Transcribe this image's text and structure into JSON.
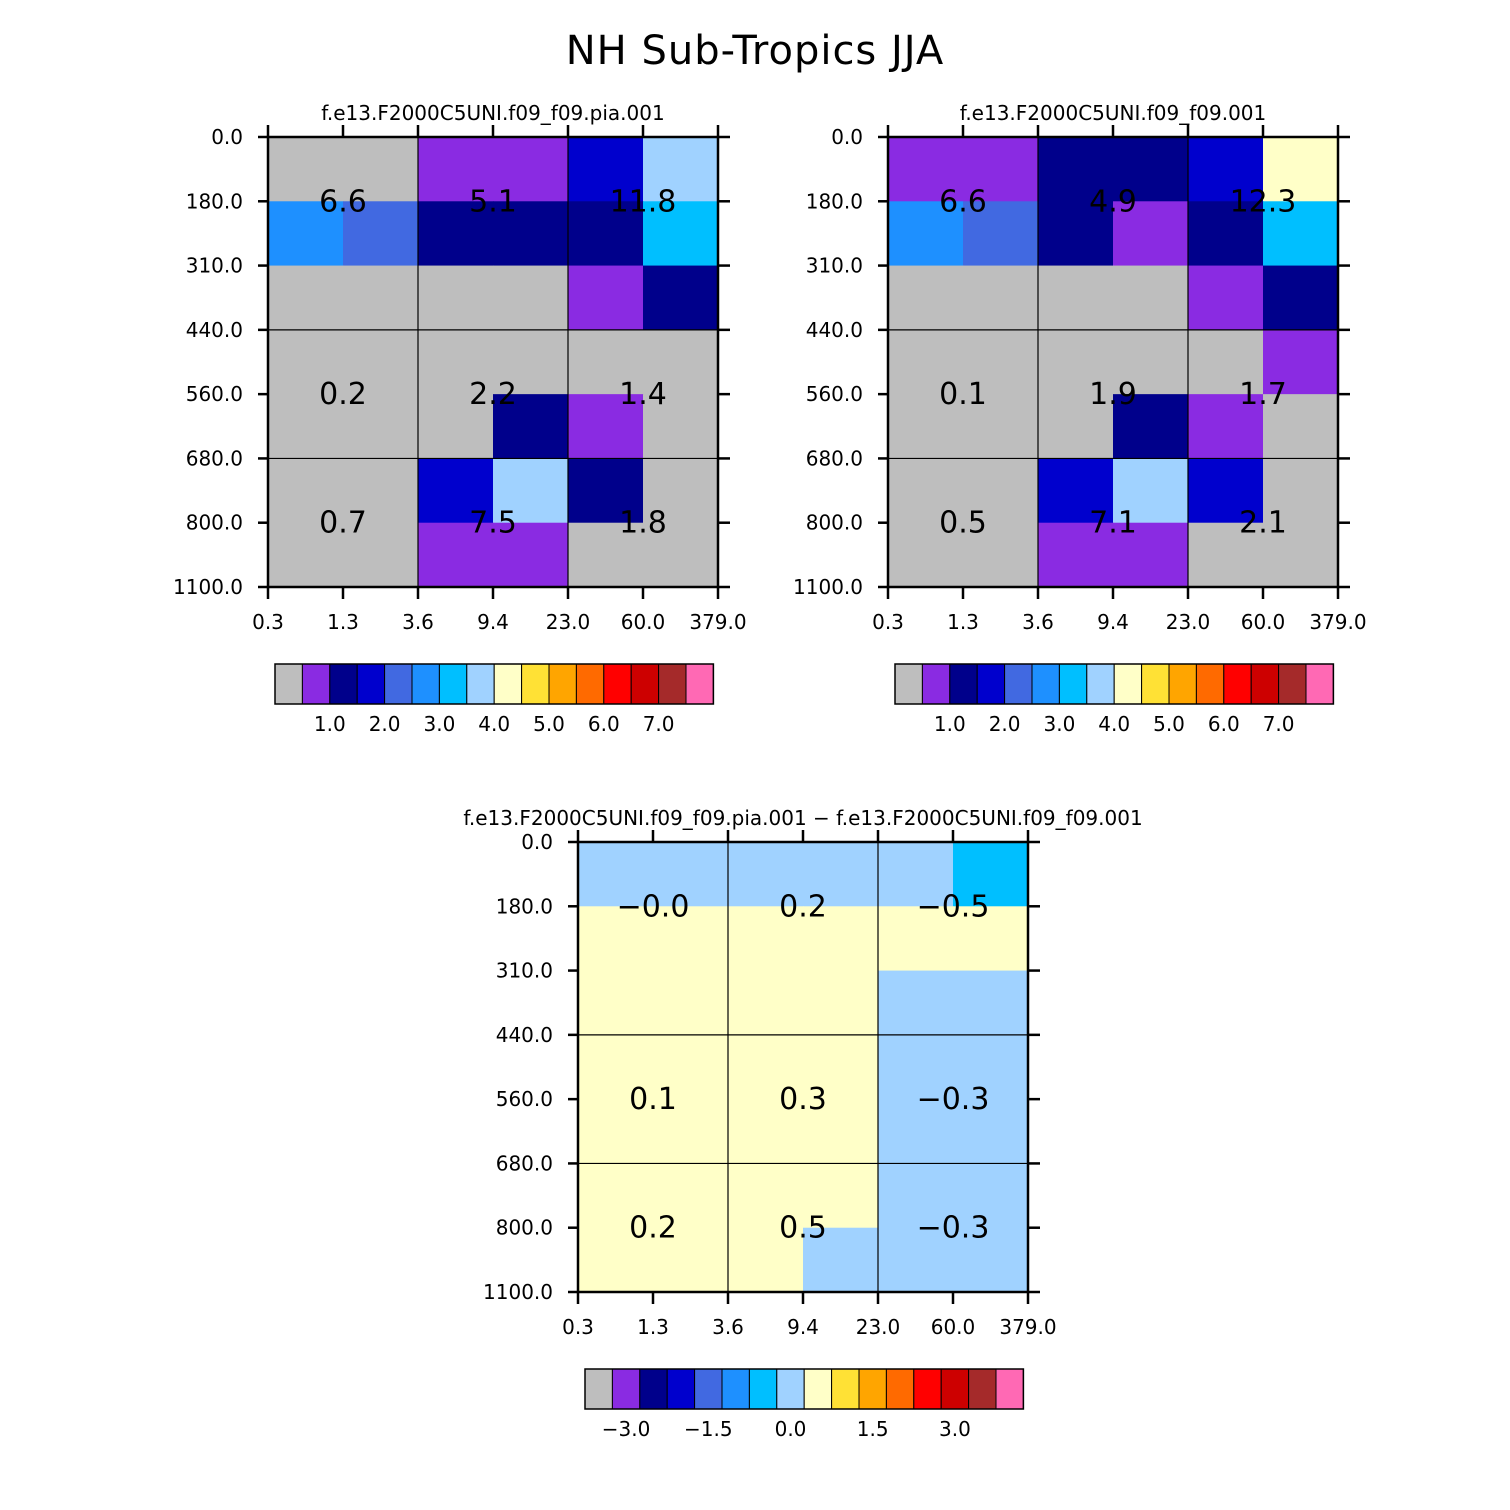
{
  "title": "NH Sub-Tropics JJA",
  "chart_data": {
    "type": "heatmap",
    "x_tick_labels": [
      "0.3",
      "1.3",
      "3.6",
      "9.4",
      "23.0",
      "60.0",
      "379.0"
    ],
    "y_tick_labels": [
      "0.0",
      "180.0",
      "310.0",
      "440.0",
      "560.0",
      "680.0",
      "800.0",
      "1100.0"
    ],
    "panels": [
      {
        "title": "f.e13.F2000C5UNI.f09_f09.pia.001",
        "levels": [
          0.5,
          1.0,
          1.5,
          2.0,
          2.5,
          3.0,
          3.5,
          4.0,
          4.5,
          5.0,
          5.5,
          6.0,
          6.5,
          7.0,
          7.5
        ],
        "colorbar_labels": [
          "1.0",
          "2.0",
          "3.0",
          "4.0",
          "5.0",
          "6.0",
          "7.0"
        ],
        "cells": [
          [
            0.2,
            0.2,
            0.8,
            0.8,
            1.8,
            3.8
          ],
          [
            2.8,
            2.2,
            1.2,
            1.2,
            1.2,
            3.2
          ],
          [
            0.2,
            0.2,
            0.2,
            0.2,
            0.8,
            1.2
          ],
          [
            0.2,
            0.2,
            0.2,
            0.2,
            0.2,
            0.2
          ],
          [
            0.2,
            0.2,
            0.2,
            1.2,
            0.8,
            0.2
          ],
          [
            0.2,
            0.2,
            1.8,
            3.8,
            1.2,
            0.2
          ],
          [
            0.2,
            0.2,
            0.8,
            0.8,
            0.2,
            0.2
          ]
        ],
        "block_totals": [
          {
            "value": "6.6"
          },
          {
            "value": "5.1"
          },
          {
            "value": "11.8"
          },
          {
            "value": "0.2"
          },
          {
            "value": "2.2"
          },
          {
            "value": "1.4"
          },
          {
            "value": "0.7"
          },
          {
            "value": "7.5"
          },
          {
            "value": "1.8"
          }
        ]
      },
      {
        "title": "f.e13.F2000C5UNI.f09_f09.001",
        "levels": [
          0.5,
          1.0,
          1.5,
          2.0,
          2.5,
          3.0,
          3.5,
          4.0,
          4.5,
          5.0,
          5.5,
          6.0,
          6.5,
          7.0,
          7.5
        ],
        "colorbar_labels": [
          "1.0",
          "2.0",
          "3.0",
          "4.0",
          "5.0",
          "6.0",
          "7.0"
        ],
        "cells": [
          [
            0.8,
            0.8,
            1.2,
            1.2,
            1.8,
            4.2
          ],
          [
            2.8,
            2.2,
            1.2,
            0.8,
            1.2,
            3.2
          ],
          [
            0.2,
            0.2,
            0.2,
            0.2,
            0.8,
            1.2
          ],
          [
            0.2,
            0.2,
            0.2,
            0.2,
            0.2,
            0.8
          ],
          [
            0.2,
            0.2,
            0.2,
            1.2,
            0.8,
            0.2
          ],
          [
            0.2,
            0.2,
            1.8,
            3.8,
            1.8,
            0.2
          ],
          [
            0.2,
            0.2,
            0.8,
            0.8,
            0.2,
            0.2
          ]
        ],
        "block_totals": [
          {
            "value": "6.6"
          },
          {
            "value": "4.9"
          },
          {
            "value": "12.3"
          },
          {
            "value": "0.1"
          },
          {
            "value": "1.9"
          },
          {
            "value": "1.7"
          },
          {
            "value": "0.5"
          },
          {
            "value": "7.1"
          },
          {
            "value": "2.1"
          }
        ]
      },
      {
        "title": "f.e13.F2000C5UNI.f09_f09.pia.001 − f.e13.F2000C5UNI.f09_f09.001",
        "levels": [
          -3.5,
          -3.0,
          -2.5,
          -2.0,
          -1.5,
          -1.0,
          -0.5,
          0.0,
          0.5,
          1.0,
          1.5,
          2.0,
          2.5,
          3.0,
          3.5
        ],
        "colorbar_labels": [
          "−3.0",
          "−1.5",
          "0.0",
          "1.5",
          "3.0"
        ],
        "colorbar_label_boxes": [
          1.5,
          4.5,
          7.5,
          10.5,
          13.5
        ],
        "cells": [
          [
            -0.3,
            -0.3,
            -0.3,
            -0.3,
            -0.3,
            -0.8
          ],
          [
            0.2,
            0.2,
            0.2,
            0.2,
            0.2,
            0.2
          ],
          [
            0.2,
            0.2,
            0.2,
            0.2,
            -0.3,
            -0.3
          ],
          [
            0.2,
            0.2,
            0.2,
            0.2,
            -0.3,
            -0.3
          ],
          [
            0.2,
            0.2,
            0.2,
            0.2,
            -0.3,
            -0.3
          ],
          [
            0.2,
            0.2,
            0.2,
            0.2,
            -0.3,
            -0.3
          ],
          [
            0.2,
            0.2,
            0.2,
            -0.3,
            -0.3,
            -0.3
          ]
        ],
        "block_totals": [
          {
            "value": "−0.0"
          },
          {
            "value": "0.2"
          },
          {
            "value": "−0.5"
          },
          {
            "value": "0.1"
          },
          {
            "value": "0.3"
          },
          {
            "value": "−0.3"
          },
          {
            "value": "0.2"
          },
          {
            "value": "0.5"
          },
          {
            "value": "−0.3"
          }
        ]
      }
    ],
    "colormap": [
      "#bebebe",
      "#8a2be2",
      "#00008b",
      "#0000cd",
      "#4169e1",
      "#1e90ff",
      "#00bfff",
      "#a0d2ff",
      "#ffffc8",
      "#ffe135",
      "#ffa500",
      "#ff6a00",
      "#ff0000",
      "#cd0000",
      "#a52a2a",
      "#ff69b4"
    ]
  }
}
